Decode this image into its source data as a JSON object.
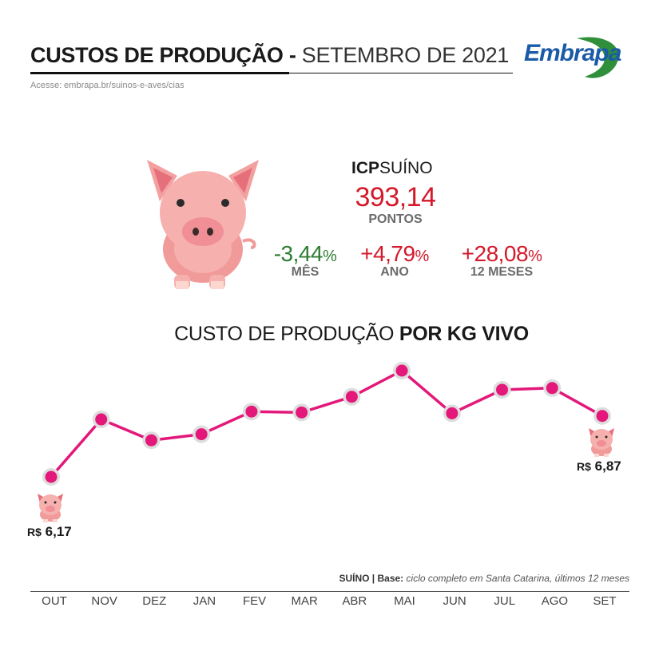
{
  "header": {
    "title_bold": "CUSTOS DE PRODUÇÃO -",
    "title_light": "SETEMBRO DE 2021",
    "source": "Acesse: embrapa.br/suinos-e-aves/cias",
    "logo_text": "Embrapa"
  },
  "index": {
    "label_bold": "ICP",
    "label_rest": "SUÍNO",
    "value": "393,14",
    "unit": "PONTOS",
    "metrics": [
      {
        "value": "-3,44",
        "pct": "%",
        "label": "MÊS",
        "color": "#2e7d32"
      },
      {
        "value": "+4,79",
        "pct": "%",
        "label": "ANO",
        "color": "#d4192b"
      },
      {
        "value": "+28,08",
        "pct": "%",
        "label": "12 MESES",
        "color": "#d4192b"
      }
    ]
  },
  "section": {
    "title_light": "CUSTO DE PRODUÇÃO",
    "title_bold": "POR KG VIVO"
  },
  "chart_data": {
    "type": "line",
    "title": "CUSTO DE PRODUÇÃO POR KG VIVO",
    "categories": [
      "OUT",
      "NOV",
      "DEZ",
      "JAN",
      "FEV",
      "MAR",
      "ABR",
      "MAI",
      "JUN",
      "JUL",
      "AGO",
      "SET"
    ],
    "series": [
      {
        "values": [
          6.17,
          6.83,
          6.59,
          6.66,
          6.92,
          6.91,
          7.09,
          7.39,
          6.9,
          7.17,
          7.19,
          6.87
        ]
      }
    ],
    "labels": {
      "first": {
        "currency": "R$",
        "value": "6,17"
      },
      "last": {
        "currency": "R$",
        "value": "6,87"
      }
    },
    "line_color": "#e3187a",
    "marker_ring_color": "#dddddd",
    "grid": false
  },
  "footnote": {
    "bold": "SUÍNO | Base:",
    "italic": "ciclo completo em Santa Catarina, últimos 12 meses"
  }
}
